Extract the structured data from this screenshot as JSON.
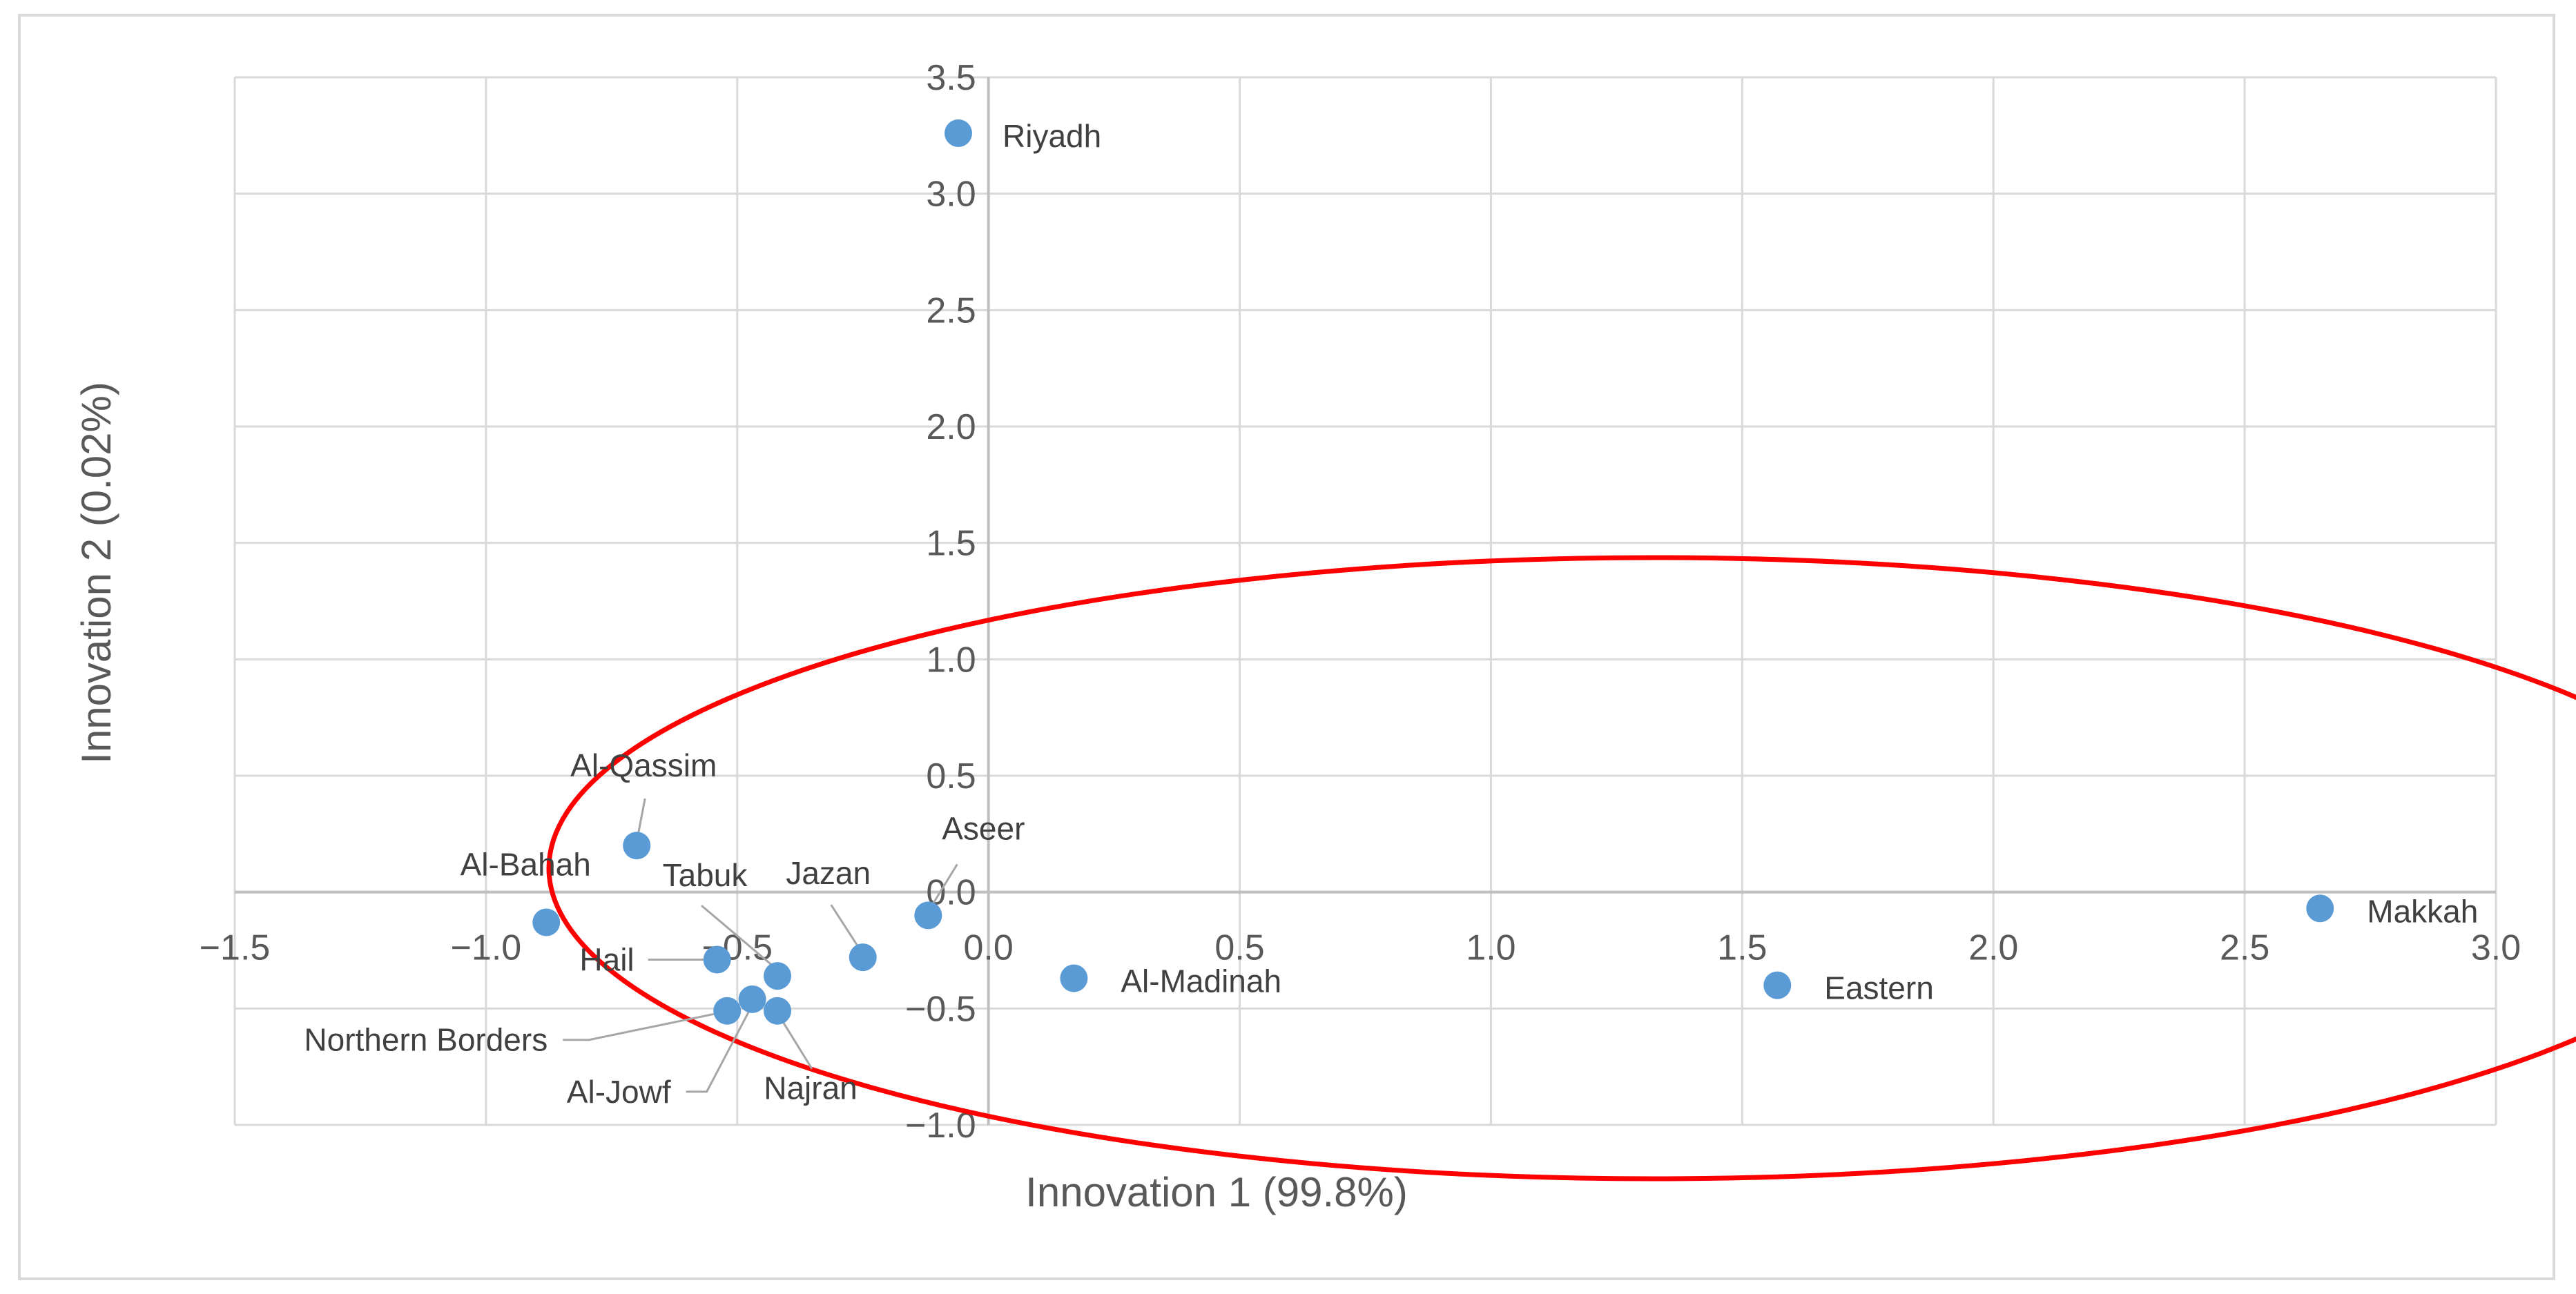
{
  "chart_data": {
    "type": "scatter",
    "title": "",
    "xlabel": "Innovation 1 (99.8%)",
    "ylabel": "Innovation 2 (0.02%)",
    "xlim": [
      -1.5,
      3.0
    ],
    "ylim": [
      -1.0,
      3.5
    ],
    "xticks": [
      -1.5,
      -1.0,
      -0.5,
      0.0,
      0.5,
      1.0,
      1.5,
      2.0,
      2.5,
      3.0
    ],
    "yticks": [
      -1.0,
      -0.5,
      0.0,
      0.5,
      1.0,
      1.5,
      2.0,
      2.5,
      3.0,
      3.5
    ],
    "xtick_labels": [
      "−1.5",
      "−1.0",
      "−0.5",
      "0.0",
      "0.5",
      "1.0",
      "1.5",
      "2.0",
      "2.5",
      "3.0"
    ],
    "ytick_labels": [
      "−1.0",
      "−0.5",
      "0.0",
      "0.5",
      "1.0",
      "1.5",
      "2.0",
      "2.5",
      "3.0",
      "3.5"
    ],
    "grid": true,
    "marker_color": "#5b9bd5",
    "highlight_color": "#ff0000",
    "points": [
      {
        "name": "Riyadh",
        "x": -0.06,
        "y": 3.26
      },
      {
        "name": "Makkah",
        "x": 2.65,
        "y": -0.07
      },
      {
        "name": "Eastern",
        "x": 1.57,
        "y": -0.4
      },
      {
        "name": "Al-Madinah",
        "x": 0.17,
        "y": -0.37
      },
      {
        "name": "Aseer",
        "x": -0.12,
        "y": -0.1
      },
      {
        "name": "Jazan",
        "x": -0.25,
        "y": -0.28
      },
      {
        "name": "Tabuk",
        "x": -0.42,
        "y": -0.36
      },
      {
        "name": "Hail",
        "x": -0.54,
        "y": -0.29
      },
      {
        "name": "Al-Qassim",
        "x": -0.7,
        "y": 0.2
      },
      {
        "name": "Al-Bahah",
        "x": -0.88,
        "y": -0.13
      },
      {
        "name": "Northern Borders",
        "x": -0.52,
        "y": -0.51
      },
      {
        "name": "Al-Jowf",
        "x": -0.47,
        "y": -0.46
      },
      {
        "name": "Najran",
        "x": -0.42,
        "y": -0.51
      }
    ]
  }
}
